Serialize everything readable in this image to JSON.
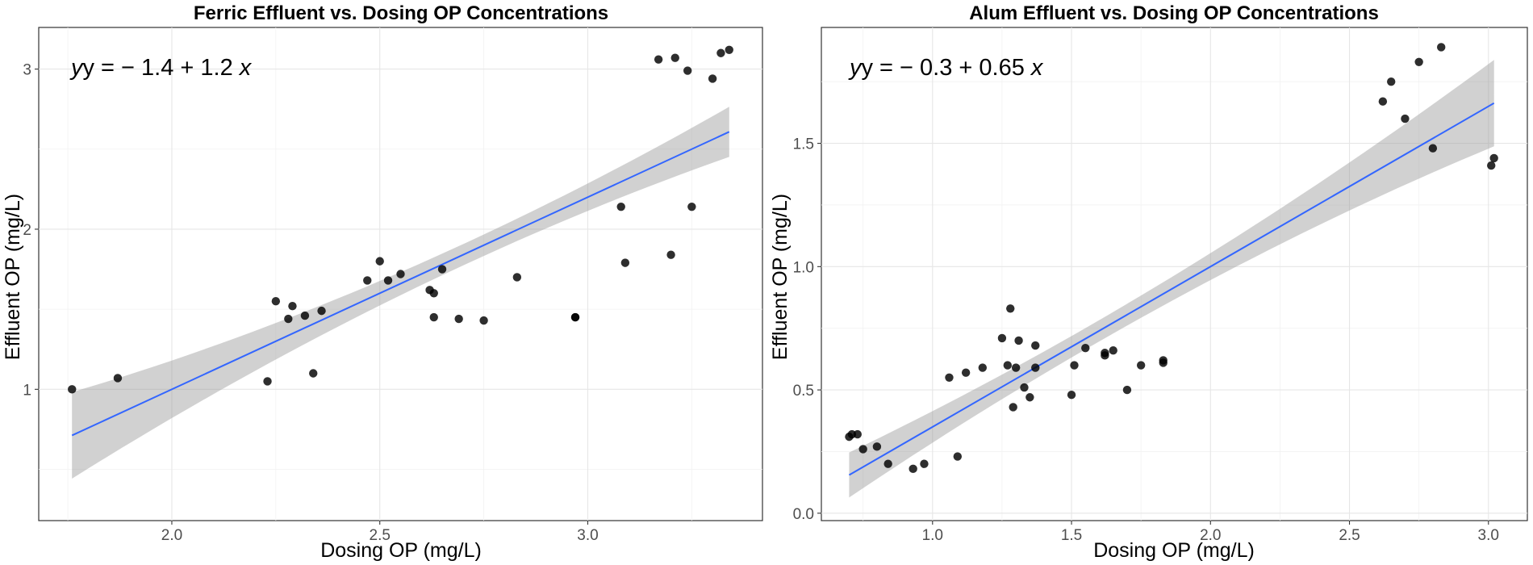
{
  "chart_data": [
    {
      "type": "scatter",
      "title": "Ferric Effluent vs. Dosing OP Concentrations",
      "xlabel": "Dosing OP (mg/L)",
      "ylabel": "Effluent OP (mg/L)",
      "xlim": [
        1.68,
        3.42
      ],
      "ylim": [
        0.18,
        3.26
      ],
      "x_ticks": [
        2.0,
        2.5,
        3.0
      ],
      "x_tick_labels": [
        "2.0",
        "2.5",
        "3.0"
      ],
      "y_ticks": [
        1,
        2,
        3
      ],
      "y_tick_labels": [
        "1",
        "2",
        "3"
      ],
      "grid": true,
      "annotation": {
        "prefix": "y = − 1.4 + 1.2 ",
        "var": "x"
      },
      "fit_line": {
        "intercept": -1.4,
        "slope": 1.2
      },
      "points": [
        [
          1.76,
          1.0
        ],
        [
          1.87,
          1.07
        ],
        [
          2.23,
          1.05
        ],
        [
          2.25,
          1.55
        ],
        [
          2.28,
          1.44
        ],
        [
          2.29,
          1.52
        ],
        [
          2.32,
          1.46
        ],
        [
          2.34,
          1.1
        ],
        [
          2.36,
          1.49
        ],
        [
          2.47,
          1.68
        ],
        [
          2.5,
          1.8
        ],
        [
          2.52,
          1.68
        ],
        [
          2.55,
          1.72
        ],
        [
          2.62,
          1.62
        ],
        [
          2.63,
          1.6
        ],
        [
          2.63,
          1.45
        ],
        [
          2.65,
          1.75
        ],
        [
          2.69,
          1.44
        ],
        [
          2.75,
          1.43
        ],
        [
          2.83,
          1.7
        ],
        [
          2.97,
          1.45
        ],
        [
          2.97,
          1.45
        ],
        [
          3.08,
          2.14
        ],
        [
          3.09,
          1.79
        ],
        [
          3.17,
          3.06
        ],
        [
          3.2,
          1.84
        ],
        [
          3.21,
          3.07
        ],
        [
          3.24,
          2.99
        ],
        [
          3.25,
          2.14
        ],
        [
          3.3,
          2.94
        ],
        [
          3.32,
          3.1
        ],
        [
          3.34,
          3.12
        ]
      ]
    },
    {
      "type": "scatter",
      "title": "Alum Effluent vs. Dosing OP Concentrations",
      "xlabel": "Dosing OP (mg/L)",
      "ylabel": "Effluent OP (mg/L)",
      "xlim": [
        0.6,
        3.14
      ],
      "ylim": [
        -0.03,
        1.97
      ],
      "x_ticks": [
        1.0,
        1.5,
        2.0,
        2.5,
        3.0
      ],
      "x_tick_labels": [
        "1.0",
        "1.5",
        "2.0",
        "2.5",
        "3.0"
      ],
      "y_ticks": [
        0.0,
        0.5,
        1.0,
        1.5
      ],
      "y_tick_labels": [
        "0.0",
        "0.5",
        "1.0",
        "1.5"
      ],
      "grid": true,
      "annotation": {
        "prefix": "y = − 0.3 + 0.65 ",
        "var": "x"
      },
      "fit_line": {
        "intercept": -0.3,
        "slope": 0.65
      },
      "points": [
        [
          0.7,
          0.31
        ],
        [
          0.71,
          0.32
        ],
        [
          0.73,
          0.32
        ],
        [
          0.75,
          0.26
        ],
        [
          0.8,
          0.27
        ],
        [
          0.84,
          0.2
        ],
        [
          0.93,
          0.18
        ],
        [
          0.97,
          0.2
        ],
        [
          1.06,
          0.55
        ],
        [
          1.09,
          0.23
        ],
        [
          1.12,
          0.57
        ],
        [
          1.18,
          0.59
        ],
        [
          1.25,
          0.71
        ],
        [
          1.27,
          0.6
        ],
        [
          1.28,
          0.83
        ],
        [
          1.29,
          0.43
        ],
        [
          1.3,
          0.59
        ],
        [
          1.31,
          0.7
        ],
        [
          1.33,
          0.51
        ],
        [
          1.35,
          0.47
        ],
        [
          1.37,
          0.68
        ],
        [
          1.37,
          0.59
        ],
        [
          1.5,
          0.48
        ],
        [
          1.51,
          0.6
        ],
        [
          1.55,
          0.67
        ],
        [
          1.62,
          0.64
        ],
        [
          1.62,
          0.65
        ],
        [
          1.65,
          0.66
        ],
        [
          1.7,
          0.5
        ],
        [
          1.75,
          0.6
        ],
        [
          1.83,
          0.61
        ],
        [
          1.83,
          0.62
        ],
        [
          2.62,
          1.67
        ],
        [
          2.65,
          1.75
        ],
        [
          2.7,
          1.6
        ],
        [
          2.75,
          1.83
        ],
        [
          2.8,
          1.48
        ],
        [
          2.83,
          1.89
        ],
        [
          3.01,
          1.41
        ],
        [
          3.02,
          1.44
        ]
      ]
    }
  ]
}
